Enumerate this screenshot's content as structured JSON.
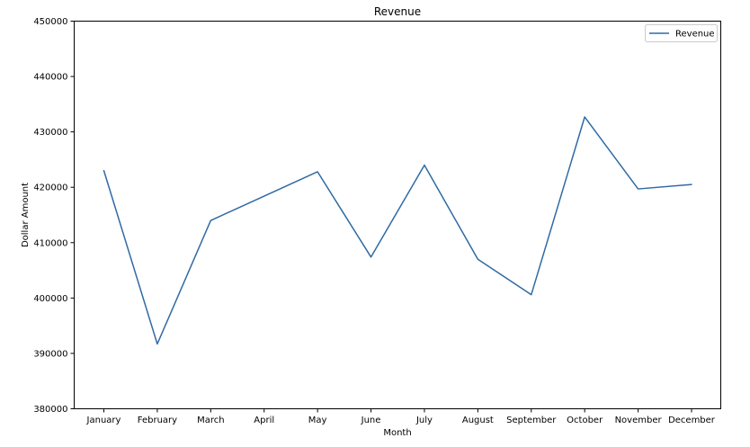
{
  "chart_data": {
    "type": "line",
    "title": "Revenue",
    "xlabel": "Month",
    "ylabel": "Dollar Amount",
    "categories": [
      "January",
      "February",
      "March",
      "April",
      "May",
      "June",
      "July",
      "August",
      "September",
      "October",
      "November",
      "December"
    ],
    "series": [
      {
        "name": "Revenue",
        "color": "#2f6aa3",
        "values": [
          423000,
          391700,
          414000,
          418400,
          422800,
          407400,
          424000,
          407000,
          400600,
          432700,
          419700,
          420500
        ]
      }
    ],
    "ylim": [
      380000,
      450000
    ],
    "yticks": [
      380000,
      390000,
      400000,
      410000,
      420000,
      430000,
      440000,
      450000
    ],
    "grid": false,
    "legend_position": "top-right"
  }
}
